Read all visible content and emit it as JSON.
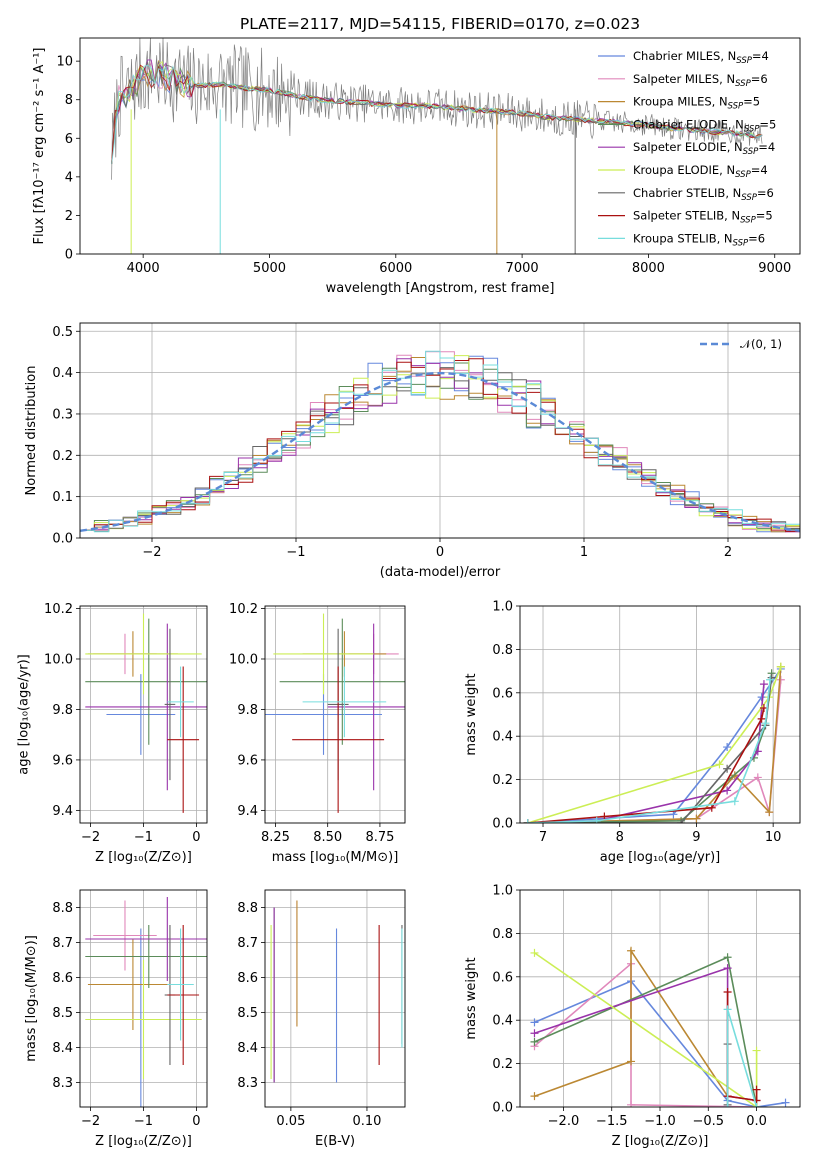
{
  "figure_title": "PLATE=2117, MJD=54115, FIBERID=0170, z=0.023",
  "colors": [
    "#6688dd",
    "#e088bb",
    "#bb8833",
    "#5b8c5a",
    "#9933aa",
    "#ccee55",
    "#666666",
    "#aa1111",
    "#77dddd"
  ],
  "chart_data": [
    {
      "id": "spectrum",
      "type": "line",
      "xlabel": "wavelength [Angstrom, rest frame]",
      "ylabel": "Flux [fλ10⁻¹⁷ erg cm⁻² s⁻¹ A⁻¹]",
      "xlim": [
        3500,
        9200
      ],
      "ylim": [
        0,
        11.2
      ],
      "xticks": [
        "4000",
        "5000",
        "6000",
        "7000",
        "8000",
        "9000"
      ],
      "yticks": [
        "0",
        "2",
        "4",
        "6",
        "8",
        "10"
      ],
      "legend_position": "upper right",
      "data_x": [
        3750,
        3800,
        3900,
        4000,
        4100,
        4200,
        4300,
        4400,
        4600,
        4800,
        5000,
        5200,
        5400,
        5600,
        5800,
        6000,
        6200,
        6400,
        6600,
        6800,
        7000,
        7200,
        7400,
        7600,
        7800,
        8000,
        8200,
        8400,
        8600,
        8800,
        9000
      ],
      "data_y": [
        5.0,
        8.0,
        8.5,
        9.3,
        9.4,
        9.1,
        8.9,
        8.7,
        8.8,
        8.6,
        8.5,
        8.2,
        8.0,
        7.9,
        7.8,
        7.7,
        7.7,
        7.6,
        7.5,
        7.4,
        7.3,
        7.1,
        7.0,
        6.9,
        6.8,
        6.7,
        6.5,
        6.4,
        6.3,
        6.2,
        6.0
      ],
      "series": [
        {
          "name": "Chabrier MILES",
          "nssp": "4"
        },
        {
          "name": "Salpeter MILES",
          "nssp": "6"
        },
        {
          "name": "Kroupa MILES",
          "nssp": "5"
        },
        {
          "name": "Chabrier ELODIE",
          "nssp": "5"
        },
        {
          "name": "Salpeter ELODIE",
          "nssp": "4"
        },
        {
          "name": "Kroupa ELODIE",
          "nssp": "4"
        },
        {
          "name": "Chabrier STELIB",
          "nssp": "6"
        },
        {
          "name": "Salpeter STELIB",
          "nssp": "5"
        },
        {
          "name": "Kroupa STELIB",
          "nssp": "6"
        }
      ]
    },
    {
      "id": "residuals",
      "type": "line",
      "xlabel": "(data-model)/error",
      "ylabel": "Normed distribution",
      "xlim": [
        -2.5,
        2.5
      ],
      "ylim": [
        0,
        0.52
      ],
      "xticks": [
        "−2",
        "−1",
        "0",
        "1",
        "2"
      ],
      "yticks": [
        "0.0",
        "0.1",
        "0.2",
        "0.3",
        "0.4",
        "0.5"
      ],
      "grid": true,
      "legend": "𝒩(0, 1)",
      "legend_position": "upper right",
      "gaussian": {
        "mean": 0,
        "sigma": 1
      }
    },
    {
      "id": "age_vs_z",
      "type": "scatter",
      "xlabel": "Z [log₁₀(Z/Z⊙)]",
      "ylabel": "age  [log₁₀(age/yr)]",
      "xlim": [
        -2.2,
        0.2
      ],
      "ylim": [
        9.35,
        10.21
      ],
      "xticks": [
        "−2",
        "−1",
        "0"
      ],
      "yticks": [
        "9.4",
        "9.6",
        "9.8",
        "10.0",
        "10.2"
      ],
      "grid": true,
      "points": [
        {
          "x": -1.05,
          "xerr": 0.65,
          "y": 9.78,
          "yerr": 0.16
        },
        {
          "x": -1.35,
          "xerr": 0.6,
          "y": 10.02,
          "yerr": 0.08
        },
        {
          "x": -1.2,
          "xerr": 0.85,
          "y": 10.02,
          "yerr": 0.09
        },
        {
          "x": -0.9,
          "xerr": 1.2,
          "y": 9.91,
          "yerr": 0.25
        },
        {
          "x": -0.55,
          "xerr": 1.55,
          "y": 9.81,
          "yerr": 0.33
        },
        {
          "x": -1.0,
          "xerr": 1.1,
          "y": 10.02,
          "yerr": 0.16
        },
        {
          "x": -0.5,
          "xerr": 0.1,
          "y": 9.82,
          "yerr": 0.3
        },
        {
          "x": -0.25,
          "xerr": 0.3,
          "y": 9.68,
          "yerr": 0.29
        },
        {
          "x": -0.3,
          "xerr": 0.25,
          "y": 9.83,
          "yerr": 0.14
        }
      ]
    },
    {
      "id": "age_vs_mass",
      "type": "scatter",
      "xlabel": "mass [log₁₀(M/M⊙)]",
      "ylabel": "",
      "xlim": [
        8.2,
        8.87
      ],
      "ylim": [
        9.35,
        10.21
      ],
      "xticks": [
        "8.25",
        "8.50",
        "8.75"
      ],
      "yticks": [
        "9.4",
        "9.6",
        "9.8",
        "10.0",
        "10.2"
      ],
      "grid": true,
      "points": [
        {
          "x": 8.48,
          "xerr": 0.28,
          "y": 9.78,
          "yerr": 0.16
        },
        {
          "x": 8.72,
          "xerr": 0.12,
          "y": 10.02,
          "yerr": 0.08
        },
        {
          "x": 8.58,
          "xerr": 0.2,
          "y": 10.02,
          "yerr": 0.09
        },
        {
          "x": 8.57,
          "xerr": 0.3,
          "y": 9.91,
          "yerr": 0.25
        },
        {
          "x": 8.72,
          "xerr": 0.22,
          "y": 9.81,
          "yerr": 0.33
        },
        {
          "x": 8.48,
          "xerr": 0.24,
          "y": 10.02,
          "yerr": 0.16
        },
        {
          "x": 8.55,
          "xerr": 0.05,
          "y": 9.82,
          "yerr": 0.3
        },
        {
          "x": 8.55,
          "xerr": 0.22,
          "y": 9.68,
          "yerr": 0.29
        },
        {
          "x": 8.58,
          "xerr": 0.2,
          "y": 9.83,
          "yerr": 0.14
        }
      ]
    },
    {
      "id": "mass_weight_vs_age",
      "type": "line",
      "xlabel": "age  [log₁₀(age/yr)]",
      "ylabel": "mass weight",
      "xlim": [
        6.7,
        10.35
      ],
      "ylim": [
        0,
        1.0
      ],
      "xticks": [
        "7",
        "8",
        "9",
        "10"
      ],
      "yticks": [
        "0.0",
        "0.2",
        "0.4",
        "0.6",
        "0.8",
        "1.0"
      ],
      "grid": true,
      "series": [
        {
          "x": [
            6.8,
            8.7,
            9.4,
            9.85,
            10.1
          ],
          "y": [
            0.0,
            0.04,
            0.35,
            0.58,
            0.71
          ]
        },
        {
          "x": [
            6.8,
            9.0,
            9.8,
            9.95,
            10.1
          ],
          "y": [
            0.0,
            0.02,
            0.21,
            0.05,
            0.66
          ]
        },
        {
          "x": [
            6.8,
            9.0,
            9.5,
            9.95,
            10.1
          ],
          "y": [
            0.0,
            0.02,
            0.22,
            0.05,
            0.72
          ]
        },
        {
          "x": [
            6.8,
            8.8,
            9.75,
            9.9,
            9.98
          ],
          "y": [
            0.0,
            0.01,
            0.3,
            0.45,
            0.69
          ]
        },
        {
          "x": [
            6.8,
            7.7,
            9.4,
            9.8,
            9.88
          ],
          "y": [
            0.0,
            0.01,
            0.15,
            0.33,
            0.64
          ]
        },
        {
          "x": [
            6.8,
            9.3,
            9.95,
            10.1
          ],
          "y": [
            0.0,
            0.27,
            0.58,
            0.72
          ]
        },
        {
          "x": [
            6.8,
            8.8,
            9.4,
            9.9,
            9.98
          ],
          "y": [
            0.0,
            0.0,
            0.25,
            0.45,
            0.67
          ]
        },
        {
          "x": [
            6.8,
            7.8,
            9.2,
            9.85,
            9.88
          ],
          "y": [
            0.0,
            0.03,
            0.07,
            0.48,
            0.53
          ]
        },
        {
          "x": [
            6.8,
            7.7,
            9.5,
            9.9,
            9.96
          ],
          "y": [
            0.0,
            0.01,
            0.1,
            0.46,
            0.66
          ]
        }
      ]
    },
    {
      "id": "mass_vs_z",
      "type": "scatter",
      "xlabel": "Z [log₁₀(Z/Z⊙)]",
      "ylabel": "mass [log₁₀(M/M⊙)]",
      "xlim": [
        -2.2,
        0.2
      ],
      "ylim": [
        8.23,
        8.85
      ],
      "xticks": [
        "−2",
        "−1",
        "0"
      ],
      "yticks": [
        "8.3",
        "8.4",
        "8.5",
        "8.6",
        "8.7",
        "8.8"
      ],
      "grid": true,
      "points": [
        {
          "x": -1.05,
          "xerr": 0.65,
          "y": 8.48,
          "yerr": 0.26
        },
        {
          "x": -1.35,
          "xerr": 0.6,
          "y": 8.72,
          "yerr": 0.1
        },
        {
          "x": -1.2,
          "xerr": 0.85,
          "y": 8.58,
          "yerr": 0.13
        },
        {
          "x": -0.9,
          "xerr": 1.2,
          "y": 8.66,
          "yerr": 0.09
        },
        {
          "x": -0.55,
          "xerr": 1.55,
          "y": 8.71,
          "yerr": 0.12
        },
        {
          "x": -1.0,
          "xerr": 1.1,
          "y": 8.48,
          "yerr": 0.17
        },
        {
          "x": -0.5,
          "xerr": 0.1,
          "y": 8.55,
          "yerr": 0.2
        },
        {
          "x": -0.25,
          "xerr": 0.3,
          "y": 8.55,
          "yerr": 0.2
        },
        {
          "x": -0.3,
          "xerr": 0.25,
          "y": 8.58,
          "yerr": 0.16
        }
      ]
    },
    {
      "id": "mass_vs_ebv",
      "type": "scatter",
      "xlabel": "E(B-V)",
      "ylabel": "",
      "xlim": [
        0.033,
        0.125
      ],
      "ylim": [
        8.23,
        8.85
      ],
      "xticks": [
        "0.05",
        "0.10"
      ],
      "yticks": [
        "8.3",
        "8.4",
        "8.5",
        "8.6",
        "8.7",
        "8.8"
      ],
      "grid": true,
      "points": [
        {
          "x": 0.08,
          "y": 8.52,
          "yerr": 0.22
        },
        {
          "x": 0.054,
          "y": 8.64,
          "yerr": 0.18
        },
        {
          "x": 0.054,
          "y": 8.64,
          "yerr": 0.18
        },
        {
          "x": 0.039,
          "y": 8.55,
          "yerr": 0.25
        },
        {
          "x": 0.039,
          "y": 8.55,
          "yerr": 0.25
        },
        {
          "x": 0.037,
          "y": 8.53,
          "yerr": 0.22
        },
        {
          "x": 0.123,
          "y": 8.58,
          "yerr": 0.17
        },
        {
          "x": 0.108,
          "y": 8.55,
          "yerr": 0.2
        },
        {
          "x": 0.123,
          "y": 8.57,
          "yerr": 0.17
        }
      ]
    },
    {
      "id": "mass_weight_vs_z",
      "type": "line",
      "xlabel": "Z [log₁₀(Z/Z⊙)]",
      "ylabel": "mass weight",
      "xlim": [
        -2.45,
        0.45
      ],
      "ylim": [
        0,
        1.0
      ],
      "xticks": [
        "−2.0",
        "−1.5",
        "−1.0",
        "−0.5",
        "0.0"
      ],
      "yticks": [
        "0.0",
        "0.2",
        "0.4",
        "0.6",
        "0.8",
        "1.0"
      ],
      "grid": true,
      "series": [
        {
          "x": [
            -2.3,
            -1.3,
            -0.3,
            0.0,
            0.3
          ],
          "y": [
            0.39,
            0.58,
            0.03,
            0.0,
            0.02
          ]
        },
        {
          "x": [
            -2.3,
            -1.3,
            -1.3,
            0.0
          ],
          "y": [
            0.28,
            0.66,
            0.01,
            0.0
          ]
        },
        {
          "x": [
            -2.3,
            -1.3,
            -1.3,
            -0.3
          ],
          "y": [
            0.05,
            0.21,
            0.72,
            0.05
          ]
        },
        {
          "x": [
            -2.3,
            -0.3,
            0.0
          ],
          "y": [
            0.3,
            0.69,
            0.0
          ]
        },
        {
          "x": [
            -2.3,
            -0.3,
            -0.3,
            0.0
          ],
          "y": [
            0.34,
            0.64,
            0.05,
            0.03
          ]
        },
        {
          "x": [
            -2.3,
            0.0,
            0.0
          ],
          "y": [
            0.71,
            0.0,
            0.26
          ]
        },
        {
          "x": [
            -0.3,
            -0.3
          ],
          "y": [
            0.01,
            0.29
          ]
        },
        {
          "x": [
            -0.3,
            -0.3,
            0.0,
            0.0
          ],
          "y": [
            0.53,
            0.05,
            0.03,
            0.08
          ]
        },
        {
          "x": [
            -0.3,
            -0.3,
            0.0
          ],
          "y": [
            0.0,
            0.45,
            0.0
          ]
        }
      ]
    }
  ]
}
